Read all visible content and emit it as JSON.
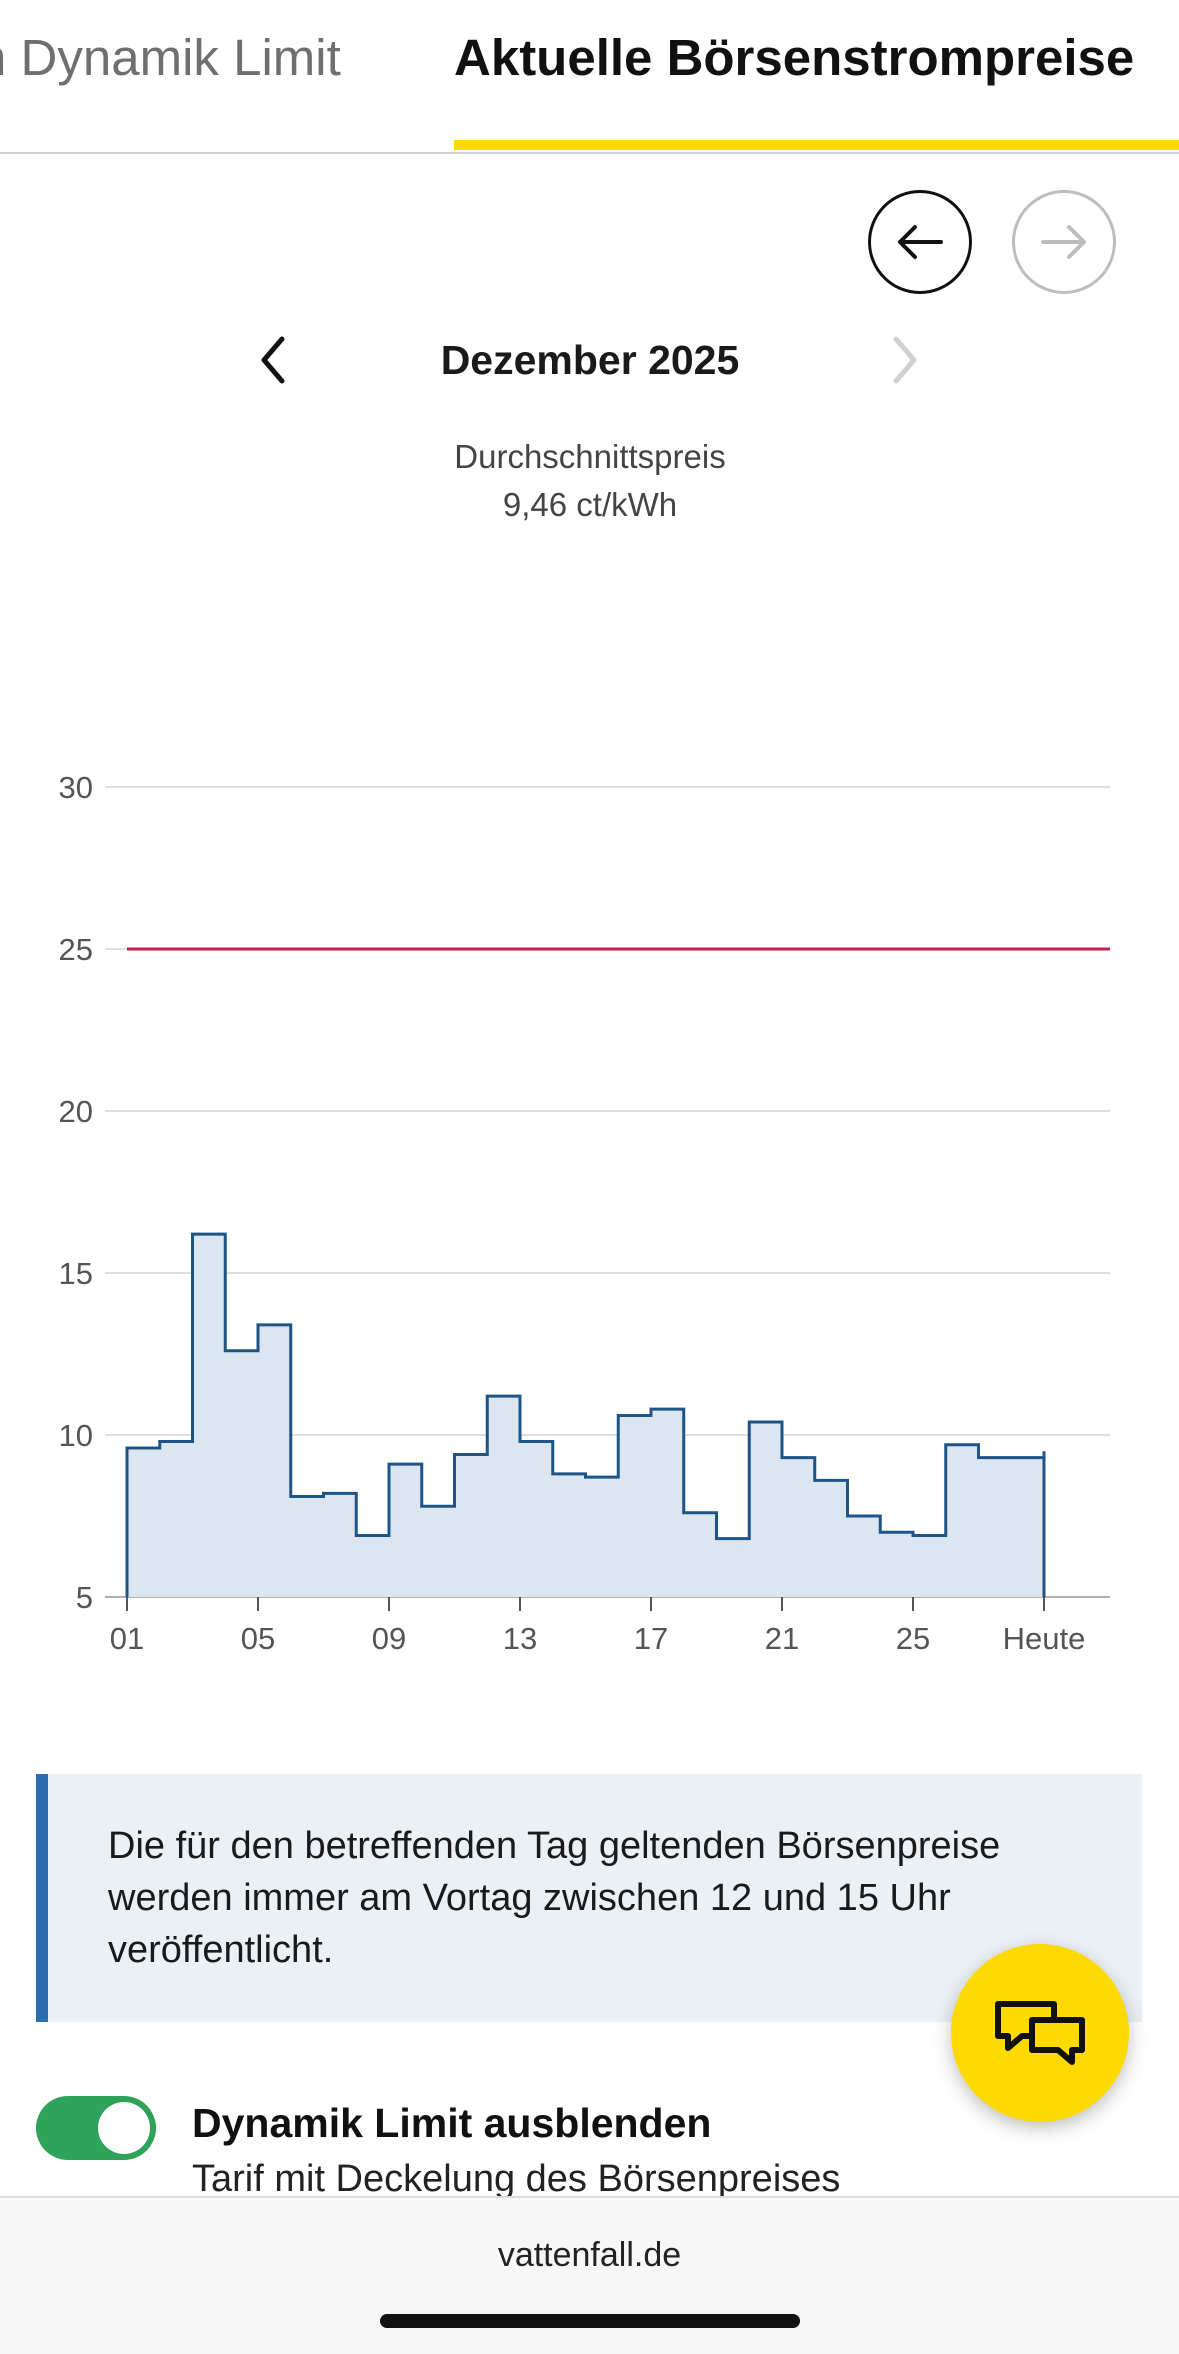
{
  "tabs": {
    "inactive_label": "n Dynamik Limit",
    "active_label": "Aktuelle Börsenstrompreise"
  },
  "nav": {
    "prev_icon": "arrow-left-icon",
    "next_icon": "arrow-right-icon",
    "month_prev_icon": "chevron-left-icon",
    "month_next_icon": "chevron-right-icon",
    "month_title": "Dezember 2025"
  },
  "summary": {
    "label": "Durchschnittspreis",
    "value": "9,46 ct/kWh"
  },
  "chart_data": {
    "type": "area",
    "x_tick_labels": [
      "01",
      "05",
      "09",
      "13",
      "17",
      "21",
      "25",
      "Heute"
    ],
    "y_ticks": [
      5,
      10,
      15,
      20,
      25,
      30
    ],
    "ylim": [
      5,
      30
    ],
    "days": [
      1,
      2,
      3,
      4,
      5,
      6,
      7,
      8,
      9,
      10,
      11,
      12,
      13,
      14,
      15,
      16,
      17,
      18,
      19,
      20,
      21,
      22,
      23,
      24,
      25,
      26,
      27,
      28,
      29
    ],
    "series": [
      {
        "values": [
          9.6,
          9.8,
          16.2,
          12.6,
          13.4,
          8.1,
          8.2,
          6.9,
          9.1,
          7.8,
          9.4,
          11.2,
          9.8,
          8.8,
          8.7,
          10.6,
          10.8,
          7.6,
          6.8,
          10.4,
          9.3,
          8.6,
          7.5,
          7.0,
          6.9,
          9.7,
          9.3,
          9.3,
          9.5
        ],
        "color": "#1f5487",
        "fill": "#dce6f0"
      }
    ],
    "limit_line": {
      "value": 25,
      "color": "#c0224a"
    },
    "grid": true
  },
  "info": {
    "text": "Die für den betreffenden Tag geltenden Börsenpreise werden immer am Vortag zwischen 12 und 15 Uhr veröffentlicht."
  },
  "chat": {
    "icon": "chat-bubbles-icon",
    "color": "#ffda00"
  },
  "toggle": {
    "state": "on",
    "label": "Dynamik Limit ausblenden",
    "sublabel": "Tarif mit Deckelung des Börsenpreises"
  },
  "browser": {
    "url": "vattenfall.de"
  },
  "colors": {
    "accent": "#ffda00",
    "toggle_on": "#2fa35b",
    "info_border": "#2a6db0"
  }
}
